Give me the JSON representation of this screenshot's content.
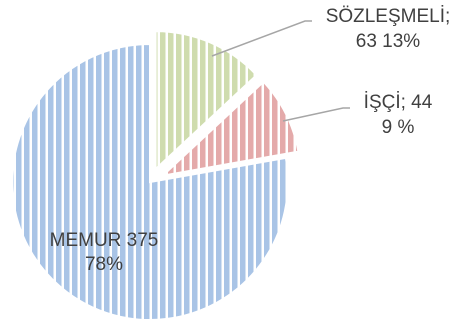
{
  "chart_data": {
    "type": "pie",
    "title": "",
    "categories": [
      "MEMUR",
      "SÖZLEŞMELİ",
      "İŞÇİ"
    ],
    "values": [
      375,
      63,
      44
    ],
    "percents": [
      "78%",
      "13%",
      "9 %"
    ],
    "colors": [
      "#a9c4e6",
      "#cfdcae",
      "#e4aaaa"
    ],
    "labels": [
      {
        "line1": "MEMUR 375",
        "line2": "78%"
      },
      {
        "line1": "SÖZLEŞMELİ;",
        "line2": "63  13%"
      },
      {
        "line1": "İŞÇİ; 44",
        "line2": "9 %"
      }
    ],
    "legend": "none",
    "grid": false
  }
}
